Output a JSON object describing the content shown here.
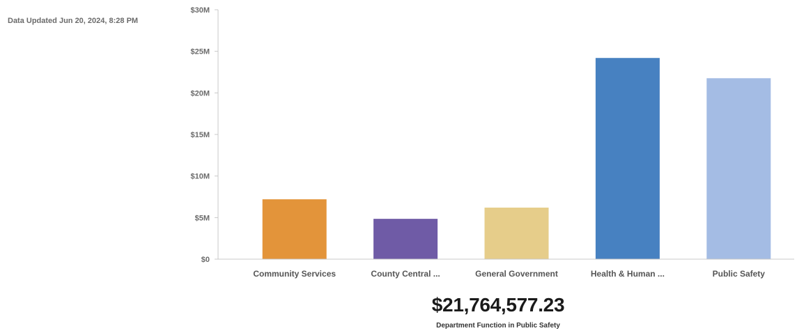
{
  "updated_text": "Data Updated Jun 20, 2024, 8:28 PM",
  "summary": {
    "value": "$21,764,577.23",
    "caption": "Department Function in Public Safety"
  },
  "chart_data": {
    "type": "bar",
    "categories": [
      "Community Services",
      "County Central ...",
      "General Government",
      "Health & Human ...",
      "Public Safety"
    ],
    "values": [
      7200000,
      4850000,
      6200000,
      24200000,
      21764577.23
    ],
    "colors": [
      "#e3943a",
      "#6f5ba6",
      "#e6cd8a",
      "#4781c1",
      "#a4bce4"
    ],
    "ylim": [
      0,
      30000000
    ],
    "yticks": [
      0,
      5000000,
      10000000,
      15000000,
      20000000,
      25000000,
      30000000
    ],
    "ytick_labels": [
      "$0",
      "$5M",
      "$10M",
      "$15M",
      "$20M",
      "$25M",
      "$30M"
    ],
    "grid": false,
    "title": "",
    "xlabel": "",
    "ylabel": ""
  }
}
